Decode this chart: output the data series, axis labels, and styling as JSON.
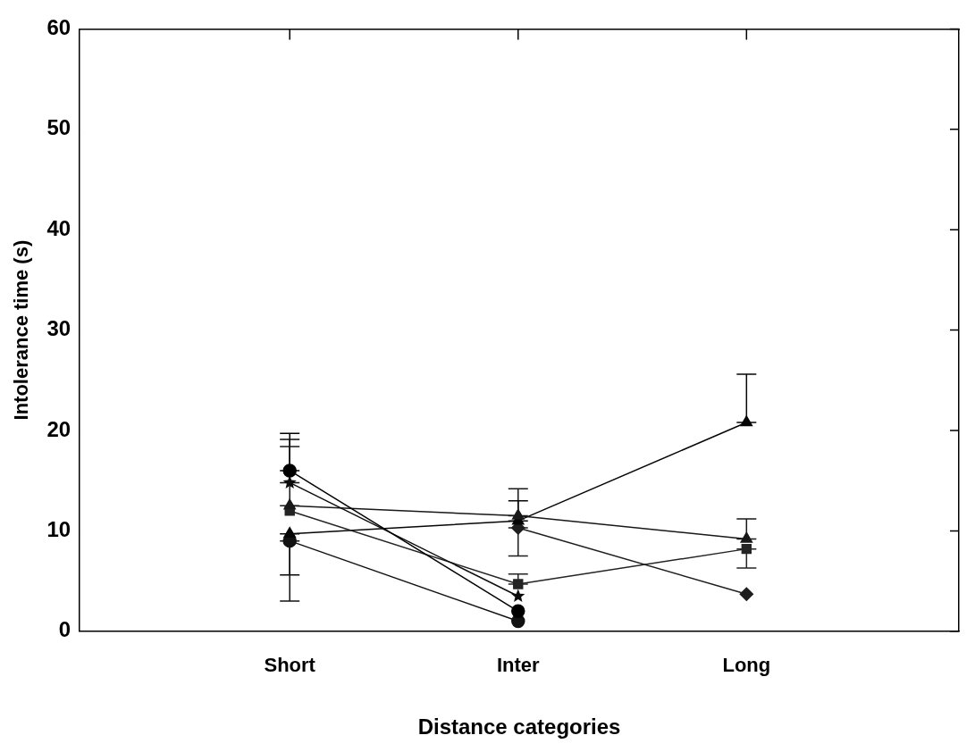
{
  "chart_data": {
    "type": "line",
    "xlabel": "Distance categories",
    "ylabel": "Intolerance time (s)",
    "categories": [
      "Short",
      "Inter",
      "Long"
    ],
    "ylim": [
      0,
      60
    ],
    "yticks": [
      0,
      10,
      20,
      30,
      40,
      50,
      60
    ],
    "grid": false,
    "legend": false,
    "line_style": "solid",
    "series": [
      {
        "color": "#000000",
        "marker": "circle",
        "values": [
          16.0,
          2.0,
          null
        ],
        "errors": [
          [
            16.0,
            19.7
          ],
          null,
          null
        ]
      },
      {
        "color": "#0c0c0c",
        "marker": "star",
        "values": [
          14.8,
          3.5,
          null
        ],
        "errors": [
          [
            14.8,
            19.1
          ],
          null,
          null
        ]
      },
      {
        "color": "#181818",
        "marker": "triangle",
        "values": [
          12.5,
          11.5,
          9.2
        ],
        "errors": [
          [
            12.5,
            18.4
          ],
          [
            11.5,
            14.2
          ],
          [
            9.2,
            11.2
          ]
        ]
      },
      {
        "color": "#242424",
        "marker": "square",
        "values": [
          12.0,
          4.7,
          8.2
        ],
        "errors": [
          null,
          [
            4.7,
            5.7
          ],
          [
            6.3,
            8.2
          ]
        ]
      },
      {
        "color": "#060606",
        "marker": "triangle",
        "values": [
          9.7,
          11.0,
          20.8
        ],
        "errors": [
          [
            5.6,
            9.7
          ],
          [
            11.0,
            13.0
          ],
          [
            20.8,
            25.6
          ]
        ]
      },
      {
        "color": "#121212",
        "marker": "circle",
        "values": [
          9.0,
          1.0,
          null
        ],
        "errors": [
          [
            3.0,
            9.0
          ],
          null,
          null
        ]
      },
      {
        "color": "#1e1e1e",
        "marker": "diamond",
        "values": [
          null,
          10.3,
          3.7
        ],
        "errors": [
          null,
          [
            7.5,
            10.3
          ],
          null
        ]
      }
    ]
  }
}
